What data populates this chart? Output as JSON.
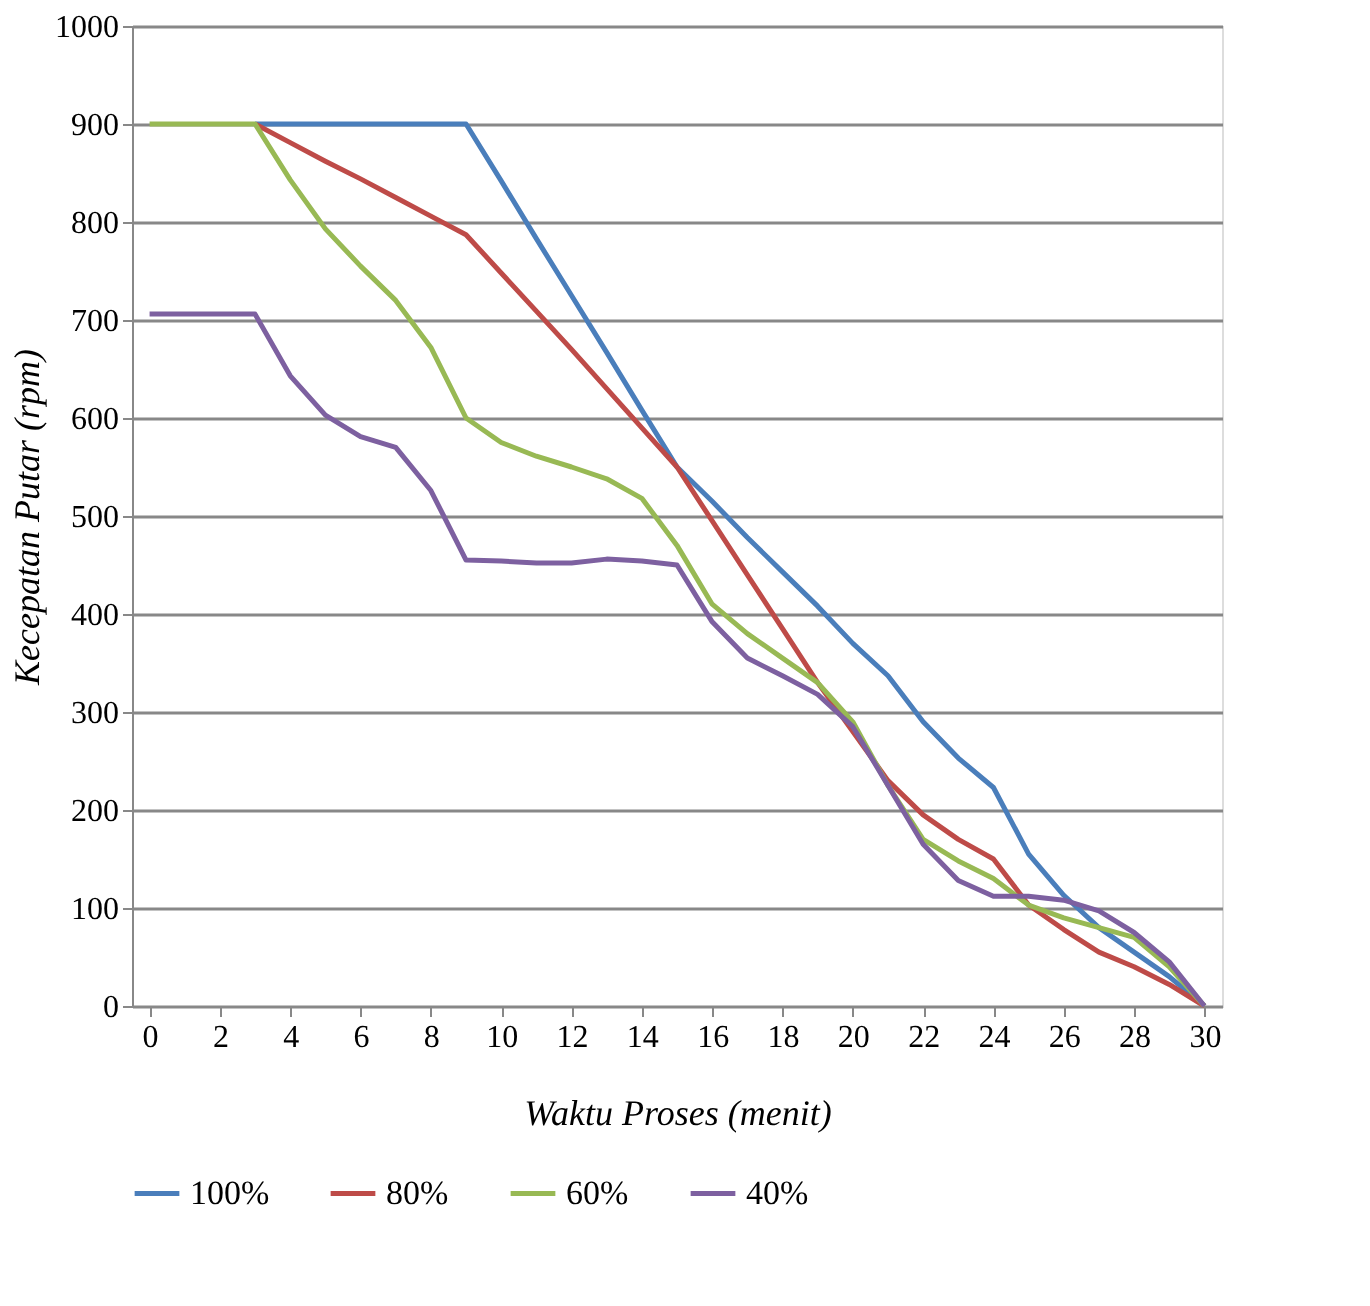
{
  "chart_data": {
    "type": "line",
    "xlabel": "Waktu Proses (menit)",
    "ylabel": "Kecepatan Putar (rpm)",
    "x": [
      0,
      1,
      2,
      3,
      4,
      5,
      6,
      7,
      8,
      9,
      10,
      11,
      12,
      13,
      14,
      15,
      16,
      17,
      18,
      19,
      20,
      21,
      22,
      23,
      24,
      25,
      26,
      27,
      28,
      29,
      30
    ],
    "xlim": [
      -0.5,
      30.5
    ],
    "xticks": [
      0,
      2,
      4,
      6,
      8,
      10,
      12,
      14,
      16,
      18,
      20,
      22,
      24,
      26,
      28,
      30
    ],
    "ylim": [
      0,
      1000
    ],
    "yticks": [
      0,
      100,
      200,
      300,
      400,
      500,
      600,
      700,
      800,
      900,
      1000
    ],
    "grid": "y",
    "legend": "bottom",
    "marker": "none",
    "line_style": "solid",
    "series": [
      {
        "name": "100%",
        "color": "#4a7ebb",
        "values": [
          null,
          null,
          null,
          900,
          900,
          900,
          900,
          900,
          900,
          900,
          842,
          783,
          725,
          667,
          608,
          550,
          515,
          478,
          443,
          408,
          370,
          337,
          290,
          253,
          223,
          155,
          113,
          80,
          55,
          30,
          0
        ]
      },
      {
        "name": "80%",
        "color": "#be4b48",
        "values": [
          null,
          null,
          null,
          900,
          881,
          862,
          844,
          825,
          806,
          787,
          748,
          709,
          670,
          630,
          590,
          550,
          495,
          440,
          385,
          330,
          280,
          230,
          195,
          170,
          150,
          103,
          78,
          55,
          40,
          22,
          0
        ]
      },
      {
        "name": "60%",
        "color": "#98b954",
        "values": [
          900,
          900,
          900,
          900,
          843,
          793,
          755,
          720,
          672,
          600,
          575,
          561,
          550,
          538,
          518,
          470,
          410,
          380,
          355,
          330,
          290,
          225,
          170,
          148,
          130,
          103,
          90,
          80,
          70,
          40,
          0
        ]
      },
      {
        "name": "40%",
        "color": "#7d60a0",
        "values": [
          706,
          706,
          706,
          706,
          643,
          603,
          581,
          570,
          526,
          455,
          454,
          452,
          452,
          456,
          454,
          450,
          392,
          355,
          337,
          318,
          285,
          225,
          165,
          128,
          112,
          112,
          108,
          97,
          75,
          45,
          0
        ]
      }
    ]
  }
}
